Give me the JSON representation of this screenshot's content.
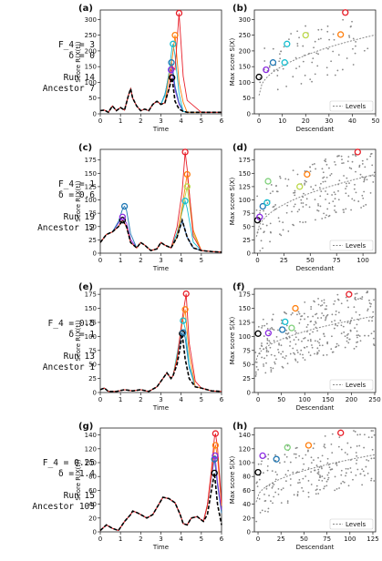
{
  "rows": [
    {
      "F": "F_4 = 3",
      "delta": "δ = 0",
      "run": "Run 14",
      "ancestor": "Ancestor 7"
    },
    {
      "F": "F_4 = 1",
      "delta": "δ = 0.6",
      "run": "Run 19",
      "ancestor": "Ancestor 12"
    },
    {
      "F": "F_4 = 0.5",
      "delta": "δ = 1",
      "run": "Run 13",
      "ancestor": "Ancestor 1"
    },
    {
      "F": "F_4 = 0.25",
      "delta": "δ = 1.4",
      "run": "Run 15",
      "ancestor": "Ancestor 103"
    }
  ],
  "colors": {
    "ancestor": "#000000",
    "gen1": "#8b2be2",
    "gen2": "#1f77b4",
    "gen3": "#17becf",
    "gen4": "#7fd07a",
    "gen5": "#bcd84a",
    "gen6": "#ff7f0e",
    "gen7": "#e8202a",
    "scatter": "#888888",
    "levels": "#888888"
  },
  "chart_data": [
    {
      "panel": "(a)",
      "type": "line",
      "xlabel": "Time",
      "ylabel": "Score R(X(t))",
      "xlim": [
        0,
        6
      ],
      "ylim": [
        0,
        330
      ],
      "xticks": [
        0,
        1,
        2,
        3,
        4,
        5,
        6
      ],
      "yticks": [
        0,
        50,
        100,
        150,
        200,
        250,
        300
      ],
      "ancestor": [
        [
          0,
          10
        ],
        [
          0.2,
          12
        ],
        [
          0.4,
          5
        ],
        [
          0.6,
          25
        ],
        [
          0.8,
          10
        ],
        [
          1.0,
          20
        ],
        [
          1.2,
          12
        ],
        [
          1.4,
          60
        ],
        [
          1.5,
          80
        ],
        [
          1.6,
          50
        ],
        [
          1.8,
          25
        ],
        [
          2.0,
          10
        ],
        [
          2.2,
          15
        ],
        [
          2.4,
          10
        ],
        [
          2.6,
          30
        ],
        [
          2.8,
          40
        ],
        [
          3.0,
          30
        ],
        [
          3.2,
          35
        ],
        [
          3.4,
          80
        ],
        [
          3.55,
          115
        ],
        [
          3.7,
          40
        ],
        [
          3.9,
          15
        ],
        [
          4.1,
          8
        ],
        [
          4.3,
          5
        ],
        [
          5.0,
          5
        ],
        [
          6,
          5
        ]
      ],
      "peaks": [
        {
          "name": "gen1",
          "x": 3.5,
          "y": 140
        },
        {
          "name": "gen2",
          "x": 3.52,
          "y": 163
        },
        {
          "name": "gen3",
          "x": 3.6,
          "y": 222
        },
        {
          "name": "gen6",
          "x": 3.7,
          "y": 250
        },
        {
          "name": "gen7",
          "x": 3.9,
          "y": 320
        }
      ]
    },
    {
      "panel": "(b)",
      "type": "scatter",
      "xlabel": "Descendant",
      "ylabel": "Max score S(X)",
      "xlim": [
        -2,
        50
      ],
      "ylim": [
        0,
        330
      ],
      "xticks": [
        0,
        10,
        20,
        30,
        40,
        50
      ],
      "yticks": [
        0,
        50,
        100,
        150,
        200,
        250,
        300
      ],
      "legend": "Levels",
      "highlights": [
        {
          "name": "ancestor",
          "x": 0,
          "y": 117
        },
        {
          "name": "gen1",
          "x": 3,
          "y": 140
        },
        {
          "name": "gen2",
          "x": 6,
          "y": 163
        },
        {
          "name": "gen3",
          "x": 11,
          "y": 163
        },
        {
          "name": "gen3",
          "x": 12,
          "y": 222
        },
        {
          "name": "gen5",
          "x": 20,
          "y": 250
        },
        {
          "name": "gen6",
          "x": 35,
          "y": 252
        },
        {
          "name": "gen7",
          "x": 37,
          "y": 322
        }
      ]
    },
    {
      "panel": "(c)",
      "type": "line",
      "xlabel": "Time",
      "ylabel": "Score R(X(t))",
      "xlim": [
        0,
        6
      ],
      "ylim": [
        0,
        195
      ],
      "xticks": [
        0,
        1,
        2,
        3,
        4,
        5
      ],
      "yticks": [
        0,
        25,
        50,
        75,
        100,
        125,
        150,
        175
      ],
      "ancestor": [
        [
          0,
          20
        ],
        [
          0.3,
          35
        ],
        [
          0.6,
          40
        ],
        [
          0.9,
          50
        ],
        [
          1.1,
          62
        ],
        [
          1.3,
          50
        ],
        [
          1.5,
          20
        ],
        [
          1.8,
          10
        ],
        [
          2.0,
          20
        ],
        [
          2.2,
          15
        ],
        [
          2.5,
          5
        ],
        [
          2.8,
          8
        ],
        [
          3.0,
          20
        ],
        [
          3.2,
          15
        ],
        [
          3.5,
          10
        ],
        [
          3.8,
          30
        ],
        [
          4.05,
          62
        ],
        [
          4.3,
          30
        ],
        [
          4.6,
          10
        ],
        [
          5.0,
          5
        ],
        [
          5.5,
          3
        ],
        [
          6,
          2
        ]
      ],
      "peaks": [
        {
          "name": "gen1",
          "x": 1.1,
          "y": 68
        },
        {
          "name": "gen2",
          "x": 1.2,
          "y": 88
        },
        {
          "name": "gen3",
          "x": 4.2,
          "y": 98
        },
        {
          "name": "gen5",
          "x": 4.3,
          "y": 125
        },
        {
          "name": "gen6",
          "x": 4.3,
          "y": 148
        },
        {
          "name": "gen7",
          "x": 4.2,
          "y": 190
        }
      ]
    },
    {
      "panel": "(d)",
      "type": "scatter",
      "xlabel": "Descendant",
      "ylabel": "Max score S(X)",
      "xlim": [
        -3,
        112
      ],
      "ylim": [
        0,
        195
      ],
      "xticks": [
        0,
        25,
        50,
        75,
        100
      ],
      "yticks": [
        0,
        25,
        50,
        75,
        100,
        125,
        150,
        175
      ],
      "legend": "Levels",
      "highlights": [
        {
          "name": "ancestor",
          "x": 0,
          "y": 62
        },
        {
          "name": "gen1",
          "x": 2,
          "y": 68
        },
        {
          "name": "gen2",
          "x": 5,
          "y": 88
        },
        {
          "name": "gen3",
          "x": 9,
          "y": 95
        },
        {
          "name": "gen4",
          "x": 10,
          "y": 135
        },
        {
          "name": "gen5",
          "x": 40,
          "y": 125
        },
        {
          "name": "gen6",
          "x": 47,
          "y": 148
        },
        {
          "name": "gen7",
          "x": 95,
          "y": 190
        }
      ]
    },
    {
      "panel": "(e)",
      "type": "line",
      "xlabel": "Time",
      "ylabel": "Score R(X(t))",
      "xlim": [
        0,
        6
      ],
      "ylim": [
        0,
        185
      ],
      "xticks": [
        0,
        1,
        2,
        3,
        4,
        5,
        6
      ],
      "yticks": [
        0,
        25,
        50,
        75,
        100,
        125,
        150,
        175
      ],
      "ancestor": [
        [
          0,
          5
        ],
        [
          0.2,
          8
        ],
        [
          0.4,
          2
        ],
        [
          0.8,
          2
        ],
        [
          1.2,
          5
        ],
        [
          1.6,
          3
        ],
        [
          2.0,
          5
        ],
        [
          2.4,
          2
        ],
        [
          2.8,
          10
        ],
        [
          3.1,
          25
        ],
        [
          3.3,
          35
        ],
        [
          3.5,
          25
        ],
        [
          3.6,
          30
        ],
        [
          3.8,
          50
        ],
        [
          3.95,
          80
        ],
        [
          4.05,
          105
        ],
        [
          4.2,
          60
        ],
        [
          4.4,
          25
        ],
        [
          4.7,
          10
        ],
        [
          5.0,
          8
        ],
        [
          5.5,
          3
        ],
        [
          6,
          2
        ]
      ],
      "peaks": [
        {
          "name": "gen2",
          "x": 4.1,
          "y": 107
        },
        {
          "name": "gen3",
          "x": 4.1,
          "y": 128
        },
        {
          "name": "gen6",
          "x": 4.2,
          "y": 148
        },
        {
          "name": "gen7",
          "x": 4.25,
          "y": 176
        }
      ]
    },
    {
      "panel": "(f)",
      "type": "scatter",
      "xlabel": "Descendant",
      "ylabel": "Max score S(X)",
      "xlim": [
        -8,
        252
      ],
      "ylim": [
        0,
        185
      ],
      "xticks": [
        0,
        50,
        100,
        150,
        200,
        250
      ],
      "yticks": [
        0,
        25,
        50,
        75,
        100,
        125,
        150,
        175
      ],
      "legend": "Levels",
      "highlights": [
        {
          "name": "ancestor",
          "x": 0,
          "y": 105
        },
        {
          "name": "gen1",
          "x": 22,
          "y": 106
        },
        {
          "name": "gen2",
          "x": 52,
          "y": 112
        },
        {
          "name": "gen3",
          "x": 58,
          "y": 126
        },
        {
          "name": "gen4",
          "x": 72,
          "y": 115
        },
        {
          "name": "gen6",
          "x": 80,
          "y": 150
        },
        {
          "name": "gen7",
          "x": 195,
          "y": 175
        }
      ]
    },
    {
      "panel": "(g)",
      "type": "line",
      "xlabel": "Time",
      "ylabel": "Score R(X(t))",
      "xlim": [
        0,
        6
      ],
      "ylim": [
        0,
        150
      ],
      "xticks": [
        0,
        1,
        2,
        3,
        4,
        5,
        6
      ],
      "yticks": [
        0,
        20,
        40,
        60,
        80,
        100,
        120,
        140
      ],
      "ancestor": [
        [
          0,
          2
        ],
        [
          0.3,
          10
        ],
        [
          0.6,
          5
        ],
        [
          0.9,
          2
        ],
        [
          1.2,
          15
        ],
        [
          1.5,
          25
        ],
        [
          1.6,
          30
        ],
        [
          1.8,
          28
        ],
        [
          2.0,
          25
        ],
        [
          2.3,
          20
        ],
        [
          2.6,
          25
        ],
        [
          2.9,
          40
        ],
        [
          3.1,
          50
        ],
        [
          3.4,
          48
        ],
        [
          3.7,
          42
        ],
        [
          3.95,
          25
        ],
        [
          4.1,
          12
        ],
        [
          4.3,
          10
        ],
        [
          4.5,
          20
        ],
        [
          4.8,
          22
        ],
        [
          5.1,
          15
        ],
        [
          5.3,
          25
        ],
        [
          5.5,
          60
        ],
        [
          5.65,
          85
        ],
        [
          5.8,
          40
        ],
        [
          6,
          10
        ]
      ],
      "peaks": [
        {
          "name": "gen2",
          "x": 5.65,
          "y": 105
        },
        {
          "name": "gen1",
          "x": 5.68,
          "y": 110
        },
        {
          "name": "gen6",
          "x": 5.7,
          "y": 125
        },
        {
          "name": "gen7",
          "x": 5.7,
          "y": 142
        }
      ]
    },
    {
      "panel": "(h)",
      "type": "scatter",
      "xlabel": "Descendant",
      "ylabel": "Max score S(X)",
      "xlim": [
        -4,
        128
      ],
      "ylim": [
        0,
        150
      ],
      "xticks": [
        0,
        25,
        50,
        75,
        100,
        125
      ],
      "yticks": [
        0,
        20,
        40,
        60,
        80,
        100,
        120,
        140
      ],
      "legend": "Levels",
      "highlights": [
        {
          "name": "ancestor",
          "x": 0,
          "y": 86
        },
        {
          "name": "gen1",
          "x": 5,
          "y": 110
        },
        {
          "name": "gen2",
          "x": 20,
          "y": 105
        },
        {
          "name": "gen4",
          "x": 32,
          "y": 122
        },
        {
          "name": "gen6",
          "x": 55,
          "y": 125
        },
        {
          "name": "gen7",
          "x": 90,
          "y": 143
        }
      ]
    }
  ]
}
